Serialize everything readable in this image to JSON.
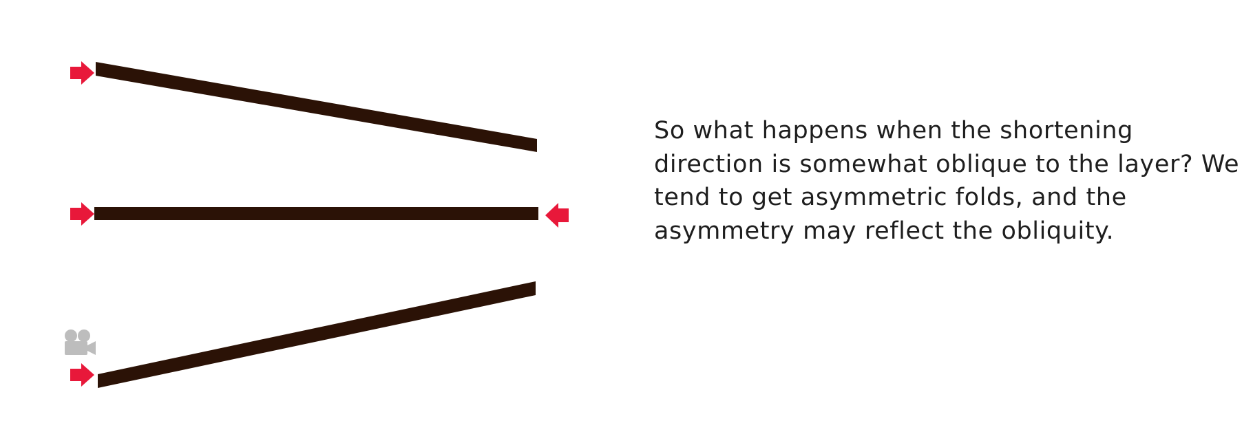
{
  "slide": {
    "caption": "So what happens when the shortening direction is somewhat oblique to the layer? We tend to get asymmetric folds, and the asymmetry may reflect the obliquity."
  },
  "diagram": {
    "layers": [
      {
        "name": "layer-tilted-down"
      },
      {
        "name": "layer-horizontal"
      },
      {
        "name": "layer-tilted-up"
      }
    ],
    "arrows": [
      {
        "name": "shortening-arrow-top-left",
        "direction": "right"
      },
      {
        "name": "shortening-arrow-middle-left",
        "direction": "right"
      },
      {
        "name": "shortening-arrow-middle-right",
        "direction": "left"
      },
      {
        "name": "shortening-arrow-bottom-left",
        "direction": "right"
      }
    ],
    "media_icon": "movie-camera-icon"
  },
  "colors": {
    "layer": "#2b1206",
    "arrow": "#e8183a",
    "media_icon": "#bdbdbd",
    "text": "#1e1e1e",
    "background": "#ffffff"
  }
}
